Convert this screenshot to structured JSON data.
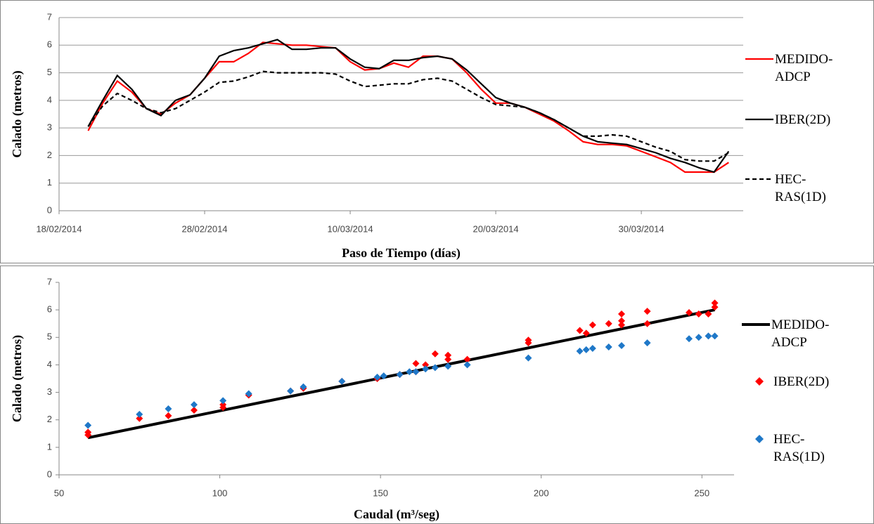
{
  "chart_data": [
    {
      "type": "line",
      "x": [
        "2014-02-20",
        "2014-02-21",
        "2014-02-22",
        "2014-02-23",
        "2014-02-24",
        "2014-02-25",
        "2014-02-26",
        "2014-02-27",
        "2014-02-28",
        "2014-03-01",
        "2014-03-02",
        "2014-03-03",
        "2014-03-04",
        "2014-03-05",
        "2014-03-06",
        "2014-03-07",
        "2014-03-08",
        "2014-03-09",
        "2014-03-10",
        "2014-03-11",
        "2014-03-12",
        "2014-03-13",
        "2014-03-14",
        "2014-03-15",
        "2014-03-16",
        "2014-03-17",
        "2014-03-18",
        "2014-03-19",
        "2014-03-20",
        "2014-03-21",
        "2014-03-22",
        "2014-03-23",
        "2014-03-24",
        "2014-03-25",
        "2014-03-26",
        "2014-03-27",
        "2014-03-28",
        "2014-03-29",
        "2014-03-30",
        "2014-03-31",
        "2014-04-01",
        "2014-04-02",
        "2014-04-03",
        "2014-04-04",
        "2014-04-05"
      ],
      "series": [
        {
          "name": "MEDIDO-ADCP",
          "color": "#ff0000",
          "line_style": "solid",
          "values": [
            2.9,
            3.9,
            4.7,
            4.3,
            3.7,
            3.5,
            3.9,
            4.2,
            4.8,
            5.4,
            5.4,
            5.7,
            6.1,
            6.05,
            6.0,
            6.0,
            5.95,
            5.9,
            5.4,
            5.1,
            5.15,
            5.35,
            5.2,
            5.6,
            5.6,
            5.5,
            5.0,
            4.4,
            3.9,
            3.9,
            3.75,
            3.5,
            3.25,
            2.9,
            2.5,
            2.4,
            2.4,
            2.35,
            2.15,
            1.95,
            1.75,
            1.4,
            1.4,
            1.4,
            1.75
          ]
        },
        {
          "name": "IBER(2D)",
          "color": "#000000",
          "line_style": "solid",
          "values": [
            3.05,
            4.0,
            4.9,
            4.4,
            3.7,
            3.45,
            4.0,
            4.2,
            4.8,
            5.6,
            5.8,
            5.9,
            6.05,
            6.2,
            5.85,
            5.85,
            5.9,
            5.9,
            5.5,
            5.2,
            5.15,
            5.45,
            5.45,
            5.55,
            5.6,
            5.5,
            5.1,
            4.6,
            4.1,
            3.9,
            3.75,
            3.55,
            3.3,
            3.0,
            2.7,
            2.5,
            2.45,
            2.4,
            2.25,
            2.1,
            1.9,
            1.75,
            1.55,
            1.4,
            2.15
          ]
        },
        {
          "name": "HEC-RAS(1D)",
          "color": "#000000",
          "line_style": "dashed",
          "values": [
            3.05,
            3.8,
            4.25,
            4.0,
            3.7,
            3.55,
            3.7,
            4.0,
            4.3,
            4.65,
            4.7,
            4.85,
            5.05,
            5.0,
            5.0,
            5.0,
            5.0,
            4.95,
            4.7,
            4.5,
            4.55,
            4.6,
            4.6,
            4.75,
            4.8,
            4.7,
            4.4,
            4.1,
            3.85,
            3.8,
            3.75,
            3.55,
            3.3,
            3.0,
            2.7,
            2.7,
            2.75,
            2.7,
            2.5,
            2.3,
            2.15,
            1.85,
            1.8,
            1.8,
            2.1
          ]
        }
      ],
      "xlim": [
        "2014-02-18",
        "2014-04-06"
      ],
      "xticks": [
        {
          "value": "2014-02-18",
          "label": "18/02/2014"
        },
        {
          "value": "2014-02-28",
          "label": "28/02/2014"
        },
        {
          "value": "2014-03-10",
          "label": "10/03/2014"
        },
        {
          "value": "2014-03-20",
          "label": "20/03/2014"
        },
        {
          "value": "2014-03-30",
          "label": "30/03/2014"
        }
      ],
      "ylim": [
        0,
        7
      ],
      "yticks": [
        0,
        1,
        2,
        3,
        4,
        5,
        6,
        7
      ],
      "grid": true,
      "x_label": "Paso de Tiempo (días)",
      "y_label": "Calado (metros)",
      "legend": "right"
    },
    {
      "type": "scatter",
      "series": [
        {
          "name": "MEDIDO-ADCP",
          "color": "#000000",
          "marker": "none",
          "x": [
            59,
            254
          ],
          "values": [
            1.35,
            6.0
          ]
        },
        {
          "name": "IBER(2D)",
          "color": "#ff0000",
          "marker": "diamond",
          "x": [
            59,
            59,
            75,
            84,
            92,
            101,
            101,
            109,
            122,
            126,
            138,
            149,
            156,
            161,
            161,
            164,
            167,
            171,
            171,
            177,
            196,
            196,
            212,
            214,
            216,
            221,
            225,
            225,
            225,
            233,
            233,
            246,
            249,
            252,
            254,
            254
          ],
          "values": [
            1.45,
            1.55,
            2.05,
            2.15,
            2.35,
            2.45,
            2.55,
            2.9,
            3.05,
            3.15,
            3.4,
            3.5,
            3.65,
            3.75,
            4.05,
            4.0,
            4.4,
            4.2,
            4.35,
            4.2,
            4.8,
            4.9,
            5.25,
            5.15,
            5.45,
            5.5,
            5.45,
            5.6,
            5.85,
            5.5,
            5.95,
            5.9,
            5.85,
            5.85,
            6.1,
            6.25
          ]
        },
        {
          "name": "HEC-RAS(1D)",
          "color": "#1f78c8",
          "marker": "diamond",
          "x": [
            59,
            75,
            84,
            92,
            101,
            109,
            122,
            126,
            138,
            149,
            151,
            156,
            159,
            161,
            164,
            167,
            171,
            177,
            196,
            212,
            214,
            216,
            221,
            225,
            233,
            246,
            249,
            252,
            254
          ],
          "values": [
            1.8,
            2.2,
            2.4,
            2.55,
            2.7,
            2.95,
            3.05,
            3.2,
            3.4,
            3.55,
            3.6,
            3.65,
            3.75,
            3.75,
            3.85,
            3.9,
            3.95,
            4.0,
            4.25,
            4.5,
            4.55,
            4.6,
            4.65,
            4.7,
            4.8,
            4.95,
            5.0,
            5.05,
            5.05
          ]
        }
      ],
      "xlim": [
        50,
        260
      ],
      "xticks": [
        50,
        100,
        150,
        200,
        250
      ],
      "ylim": [
        0,
        7
      ],
      "yticks": [
        0,
        1,
        2,
        3,
        4,
        5,
        6,
        7
      ],
      "grid": false,
      "x_label": "Caudal (m³/seg)",
      "y_label": "Calado (metros)",
      "legend": "right"
    }
  ]
}
